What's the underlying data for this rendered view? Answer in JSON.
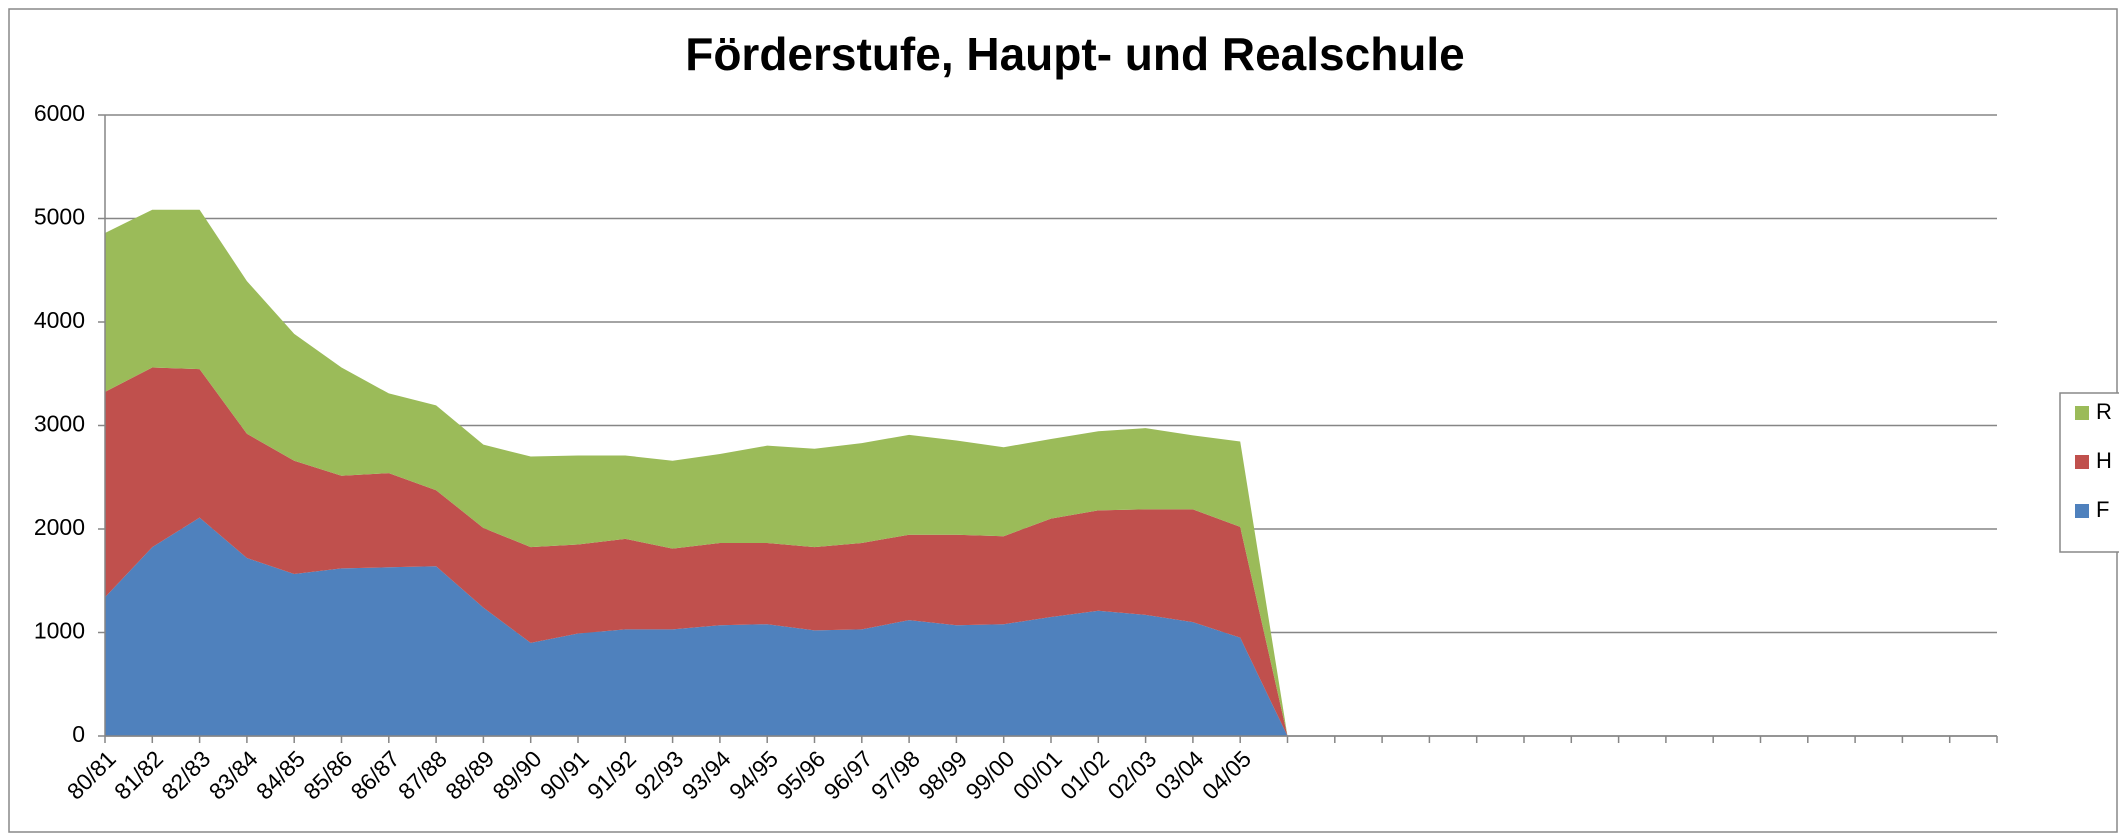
{
  "chart_data": {
    "type": "stacked_area",
    "title": "Förderstufe, Haupt- und Realschule",
    "categories": [
      "80/81",
      "81/82",
      "82/83",
      "83/84",
      "84/85",
      "85/86",
      "86/87",
      "87/88",
      "88/89",
      "89/90",
      "90/91",
      "91/92",
      "92/93",
      "93/94",
      "94/95",
      "95/96",
      "96/97",
      "97/98",
      "98/99",
      "99/00",
      "00/01",
      "01/02",
      "02/03",
      "03/04",
      "04/05",
      null,
      null,
      null,
      null,
      null,
      null,
      null,
      null,
      null,
      null,
      null,
      null,
      null,
      null,
      null,
      null
    ],
    "series": [
      {
        "name": "F",
        "color": "#4f81bd",
        "values": [
          1340,
          1825,
          2110,
          1720,
          1565,
          1620,
          1630,
          1640,
          1240,
          900,
          990,
          1030,
          1030,
          1070,
          1080,
          1020,
          1030,
          1120,
          1070,
          1080,
          1150,
          1210,
          1170,
          1100,
          950,
          0,
          null,
          null,
          null,
          null,
          null,
          null,
          null,
          null,
          null,
          null,
          null,
          null,
          null,
          null,
          null
        ]
      },
      {
        "name": "H",
        "color": "#c0504d",
        "values": [
          1985,
          1735,
          1435,
          1200,
          1095,
          895,
          910,
          735,
          770,
          925,
          860,
          875,
          780,
          795,
          785,
          805,
          835,
          825,
          875,
          850,
          950,
          970,
          1020,
          1090,
          1070,
          0,
          null,
          null,
          null,
          null,
          null,
          null,
          null,
          null,
          null,
          null,
          null,
          null,
          null,
          null,
          null
        ]
      },
      {
        "name": "R",
        "color": "#9bbb59",
        "values": [
          1535,
          1525,
          1540,
          1475,
          1225,
          1045,
          770,
          820,
          805,
          875,
          860,
          805,
          850,
          860,
          940,
          950,
          965,
          965,
          910,
          860,
          770,
          765,
          785,
          715,
          825,
          0,
          null,
          null,
          null,
          null,
          null,
          null,
          null,
          null,
          null,
          null,
          null,
          null,
          null,
          null,
          null
        ]
      }
    ],
    "ylim": [
      0,
      6000
    ],
    "yticks": [
      0,
      1000,
      2000,
      3000,
      4000,
      5000,
      6000
    ],
    "grid": true,
    "legend": "right"
  }
}
